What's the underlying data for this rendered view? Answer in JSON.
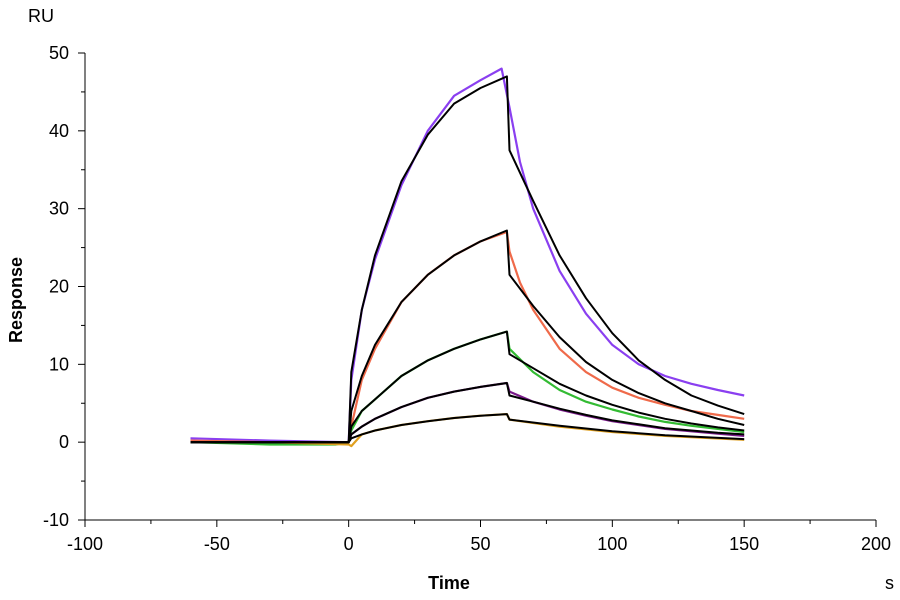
{
  "chart_data": {
    "type": "line",
    "title": "",
    "xlabel": "Time",
    "ylabel": "Response",
    "x_unit": "s",
    "y_unit": "RU",
    "xlim": [
      -100,
      200
    ],
    "ylim": [
      -10,
      50
    ],
    "x_ticks": [
      -100,
      -50,
      0,
      50,
      100,
      150,
      200
    ],
    "y_ticks": [
      -10,
      0,
      10,
      20,
      30,
      40,
      50
    ],
    "x_tick_labels": [
      "-100",
      "-50",
      "0",
      "50",
      "100",
      "150",
      "200"
    ],
    "y_tick_labels": [
      "-10",
      "0",
      "10",
      "20",
      "30",
      "40",
      "50"
    ],
    "grid": false,
    "legend": "none",
    "series": [
      {
        "role": "data",
        "color": "#8a3ff0",
        "points": [
          [
            -60,
            0.5
          ],
          [
            -30,
            0.2
          ],
          [
            0,
            0
          ],
          [
            1,
            8
          ],
          [
            5,
            17
          ],
          [
            10,
            23.5
          ],
          [
            20,
            33
          ],
          [
            30,
            40
          ],
          [
            40,
            44.5
          ],
          [
            50,
            46.5
          ],
          [
            58,
            48
          ],
          [
            61,
            43
          ],
          [
            65,
            36
          ],
          [
            70,
            30
          ],
          [
            80,
            22
          ],
          [
            90,
            16.5
          ],
          [
            100,
            12.5
          ],
          [
            110,
            10
          ],
          [
            120,
            8.5
          ],
          [
            130,
            7.5
          ],
          [
            140,
            6.7
          ],
          [
            150,
            6
          ]
        ]
      },
      {
        "role": "data",
        "color": "#ef6a4a",
        "points": [
          [
            -60,
            0.2
          ],
          [
            -30,
            0
          ],
          [
            0,
            0
          ],
          [
            1,
            2
          ],
          [
            5,
            8
          ],
          [
            10,
            12
          ],
          [
            20,
            18
          ],
          [
            30,
            21.5
          ],
          [
            40,
            24
          ],
          [
            50,
            25.8
          ],
          [
            60,
            27
          ],
          [
            61,
            24.5
          ],
          [
            65,
            20.5
          ],
          [
            70,
            17
          ],
          [
            80,
            12
          ],
          [
            90,
            9
          ],
          [
            100,
            7
          ],
          [
            110,
            5.7
          ],
          [
            120,
            4.8
          ],
          [
            130,
            4
          ],
          [
            140,
            3.5
          ],
          [
            150,
            3
          ]
        ]
      },
      {
        "role": "data",
        "color": "#33bb33",
        "points": [
          [
            -60,
            0
          ],
          [
            -30,
            -0.3
          ],
          [
            -5,
            -0.3
          ],
          [
            0,
            0
          ],
          [
            1,
            1.5
          ],
          [
            5,
            4
          ],
          [
            10,
            5.5
          ],
          [
            20,
            8.5
          ],
          [
            30,
            10.5
          ],
          [
            40,
            12
          ],
          [
            50,
            13.2
          ],
          [
            60,
            14.2
          ],
          [
            61,
            12
          ],
          [
            70,
            9
          ],
          [
            80,
            6.7
          ],
          [
            90,
            5.2
          ],
          [
            100,
            4.2
          ],
          [
            110,
            3.3
          ],
          [
            120,
            2.6
          ],
          [
            130,
            2.1
          ],
          [
            140,
            1.7
          ],
          [
            150,
            1.3
          ]
        ]
      },
      {
        "role": "data",
        "color": "#7a1a8a",
        "points": [
          [
            -60,
            0
          ],
          [
            -30,
            0
          ],
          [
            0,
            0
          ],
          [
            1,
            1
          ],
          [
            5,
            2
          ],
          [
            10,
            3
          ],
          [
            20,
            4.5
          ],
          [
            30,
            5.7
          ],
          [
            40,
            6.5
          ],
          [
            50,
            7.1
          ],
          [
            60,
            7.6
          ],
          [
            61,
            6.5
          ],
          [
            70,
            5.2
          ],
          [
            80,
            4.2
          ],
          [
            90,
            3.4
          ],
          [
            100,
            2.7
          ],
          [
            110,
            2.2
          ],
          [
            120,
            1.7
          ],
          [
            130,
            1.4
          ],
          [
            140,
            1.1
          ],
          [
            150,
            0.8
          ]
        ]
      },
      {
        "role": "data",
        "color": "#e0a020",
        "points": [
          [
            -60,
            0
          ],
          [
            -30,
            0
          ],
          [
            0,
            -0.3
          ],
          [
            1,
            -0.5
          ],
          [
            5,
            1
          ],
          [
            10,
            1.5
          ],
          [
            20,
            2.2
          ],
          [
            30,
            2.7
          ],
          [
            40,
            3.1
          ],
          [
            50,
            3.4
          ],
          [
            60,
            3.6
          ],
          [
            61,
            2.9
          ],
          [
            80,
            2
          ],
          [
            100,
            1.3
          ],
          [
            120,
            0.8
          ],
          [
            150,
            0.3
          ]
        ]
      },
      {
        "role": "fit",
        "color": "#000000",
        "points": [
          [
            -60,
            0
          ],
          [
            0,
            0
          ],
          [
            1,
            9
          ],
          [
            5,
            17
          ],
          [
            10,
            24
          ],
          [
            20,
            33.5
          ],
          [
            30,
            39.5
          ],
          [
            40,
            43.5
          ],
          [
            50,
            45.5
          ],
          [
            60,
            47
          ],
          [
            61,
            37.5
          ],
          [
            70,
            31
          ],
          [
            80,
            24
          ],
          [
            90,
            18.5
          ],
          [
            100,
            14
          ],
          [
            110,
            10.5
          ],
          [
            120,
            8
          ],
          [
            130,
            6
          ],
          [
            140,
            4.7
          ],
          [
            150,
            3.6
          ]
        ]
      },
      {
        "role": "fit",
        "color": "#000000",
        "points": [
          [
            -60,
            0
          ],
          [
            0,
            0
          ],
          [
            1,
            4
          ],
          [
            5,
            8.5
          ],
          [
            10,
            12.5
          ],
          [
            20,
            18
          ],
          [
            30,
            21.5
          ],
          [
            40,
            24
          ],
          [
            50,
            25.8
          ],
          [
            60,
            27.2
          ],
          [
            61,
            21.5
          ],
          [
            70,
            17.5
          ],
          [
            80,
            13.5
          ],
          [
            90,
            10.3
          ],
          [
            100,
            8
          ],
          [
            110,
            6.3
          ],
          [
            120,
            5
          ],
          [
            130,
            4
          ],
          [
            140,
            3
          ],
          [
            150,
            2.2
          ]
        ]
      },
      {
        "role": "fit",
        "color": "#000000",
        "points": [
          [
            -60,
            0
          ],
          [
            0,
            0
          ],
          [
            1,
            2
          ],
          [
            5,
            4
          ],
          [
            10,
            5.5
          ],
          [
            20,
            8.5
          ],
          [
            30,
            10.5
          ],
          [
            40,
            12
          ],
          [
            50,
            13.2
          ],
          [
            60,
            14.2
          ],
          [
            61,
            11.3
          ],
          [
            70,
            9.5
          ],
          [
            80,
            7.5
          ],
          [
            90,
            6
          ],
          [
            100,
            4.8
          ],
          [
            110,
            3.8
          ],
          [
            120,
            3
          ],
          [
            130,
            2.4
          ],
          [
            140,
            1.9
          ],
          [
            150,
            1.5
          ]
        ]
      },
      {
        "role": "fit",
        "color": "#000000",
        "points": [
          [
            -60,
            0
          ],
          [
            0,
            0
          ],
          [
            1,
            1
          ],
          [
            5,
            2
          ],
          [
            10,
            3
          ],
          [
            20,
            4.5
          ],
          [
            30,
            5.7
          ],
          [
            40,
            6.5
          ],
          [
            50,
            7.1
          ],
          [
            60,
            7.6
          ],
          [
            61,
            6
          ],
          [
            70,
            5.2
          ],
          [
            80,
            4.3
          ],
          [
            90,
            3.5
          ],
          [
            100,
            2.8
          ],
          [
            110,
            2.3
          ],
          [
            120,
            1.8
          ],
          [
            130,
            1.5
          ],
          [
            140,
            1.2
          ],
          [
            150,
            1
          ]
        ]
      },
      {
        "role": "fit",
        "color": "#000000",
        "points": [
          [
            -60,
            0
          ],
          [
            0,
            0
          ],
          [
            1,
            0.5
          ],
          [
            5,
            1
          ],
          [
            10,
            1.5
          ],
          [
            20,
            2.2
          ],
          [
            30,
            2.7
          ],
          [
            40,
            3.1
          ],
          [
            50,
            3.4
          ],
          [
            60,
            3.6
          ],
          [
            61,
            2.9
          ],
          [
            80,
            2.1
          ],
          [
            100,
            1.4
          ],
          [
            120,
            0.9
          ],
          [
            150,
            0.4
          ]
        ]
      }
    ]
  }
}
